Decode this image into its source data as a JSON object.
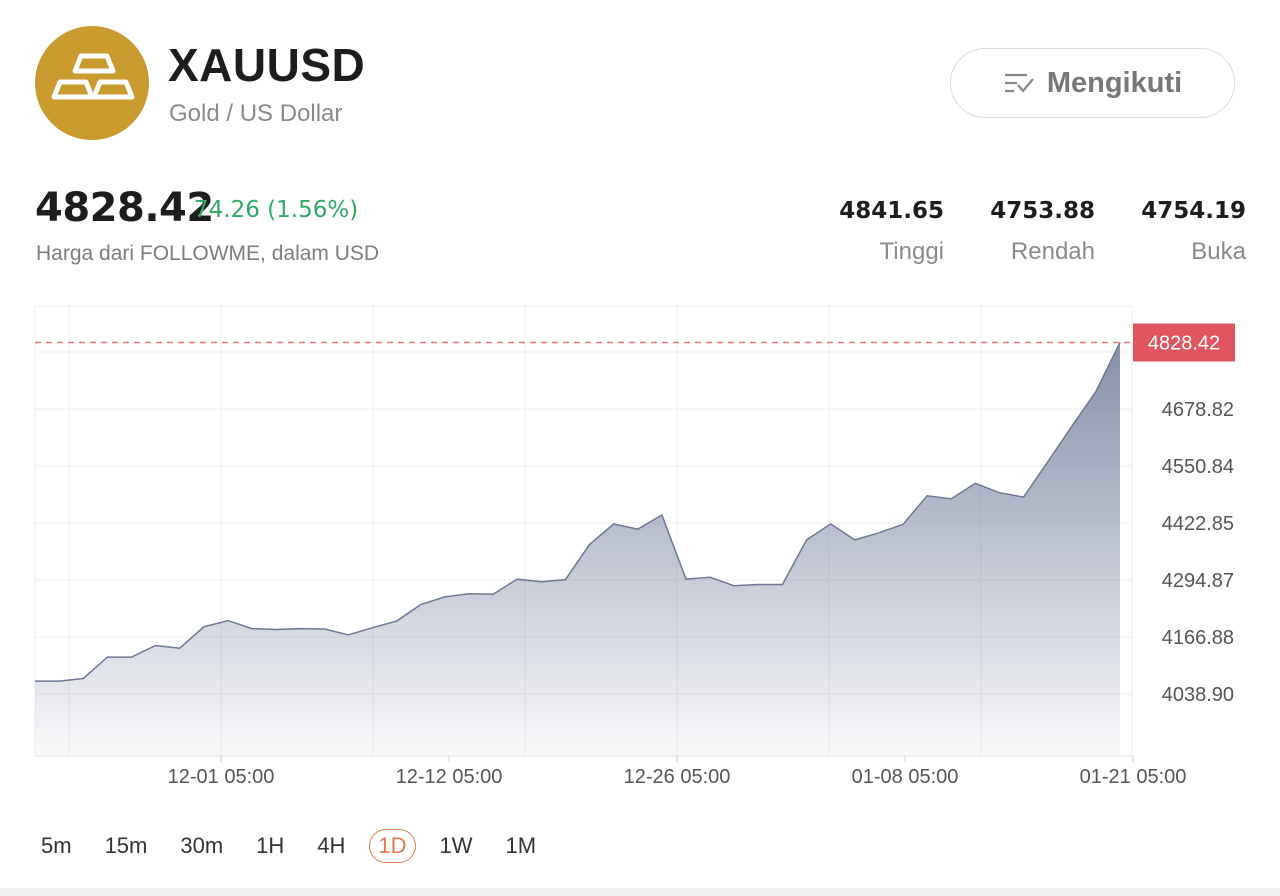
{
  "header": {
    "symbol": "XAUUSD",
    "fullname": "Gold / US Dollar",
    "logo_icon": "gold-bars-icon",
    "logo_color": "#c99a2e",
    "follow_label": "Mengikuti",
    "follow_icon": "list-check-icon"
  },
  "quote": {
    "price": "4828.42",
    "change": "74.26 (1.56%)",
    "source": "Harga dari FOLLOWME, dalam USD",
    "stats": [
      {
        "value": "4841.65",
        "label": "Tinggi"
      },
      {
        "value": "4753.88",
        "label": "Rendah"
      },
      {
        "value": "4754.19",
        "label": "Buka"
      }
    ]
  },
  "chart_data": {
    "type": "area",
    "title": "",
    "xlabel": "",
    "ylabel": "",
    "x_ticks": [
      "12-01 05:00",
      "12-12 05:00",
      "12-26 05:00",
      "01-08 05:00",
      "01-21 05:00"
    ],
    "y_ticks": [
      "4038.90",
      "4166.88",
      "4294.87",
      "4422.85",
      "4550.84",
      "4678.82"
    ],
    "ylim": [
      3900,
      4910
    ],
    "grid": true,
    "last_price_label": "4828.42",
    "last_price_color": "#e0555e",
    "area_color": "#7f8aa3",
    "series": [
      {
        "values": [
          4068,
          4068,
          4074,
          4122,
          4122,
          4148,
          4142,
          4190,
          4204,
          4186,
          4184,
          4186,
          4185,
          4172,
          4188,
          4203,
          4240,
          4257,
          4264,
          4263,
          4297,
          4291,
          4296,
          4375,
          4421,
          4409,
          4441,
          4297,
          4301,
          4282,
          4285,
          4285,
          4385,
          4421,
          4385,
          4401,
          4420,
          4484,
          4477,
          4512,
          4491,
          4481,
          4560,
          4640,
          4718,
          4828
        ]
      }
    ]
  },
  "timeframes": {
    "items": [
      "5m",
      "15m",
      "30m",
      "1H",
      "4H",
      "1D",
      "1W",
      "1M"
    ],
    "active": "1D"
  }
}
